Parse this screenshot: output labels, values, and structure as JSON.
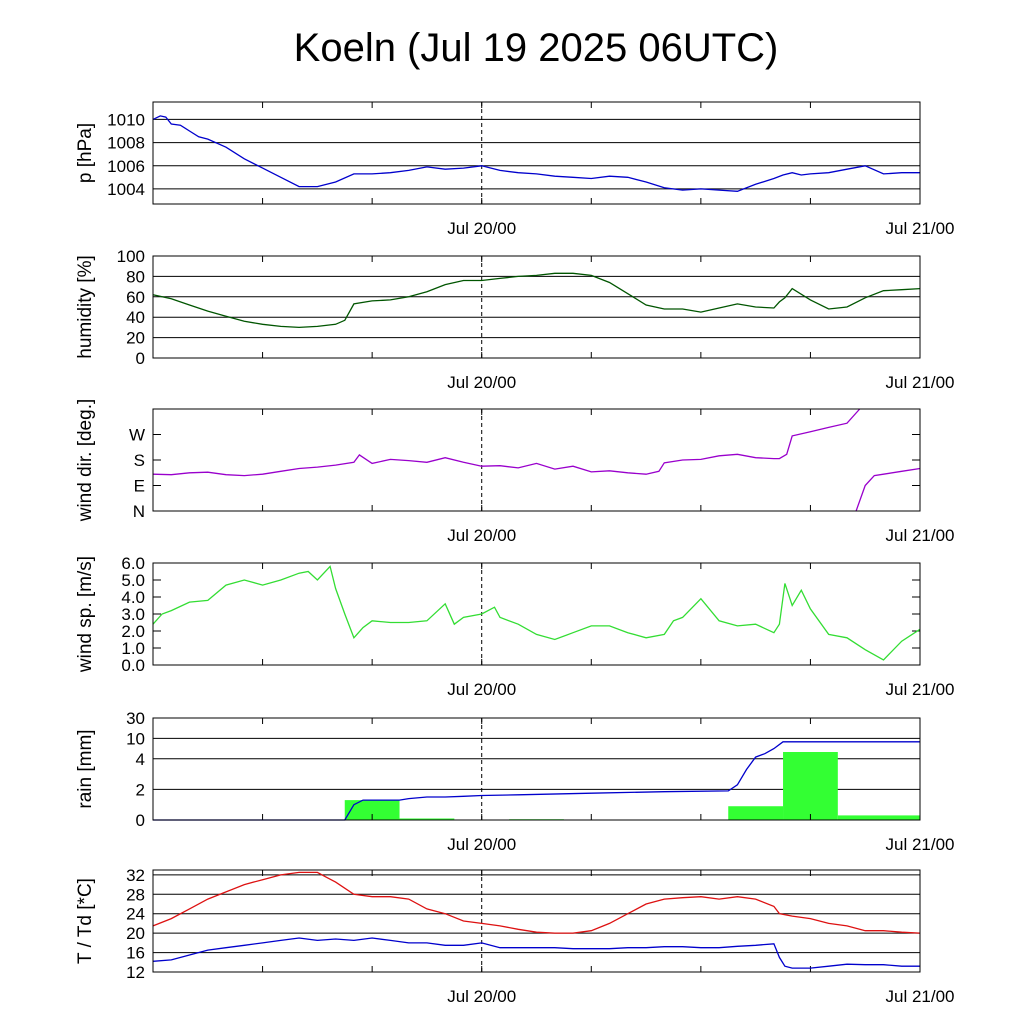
{
  "title": "Koeln (Jul 19 2025 06UTC)",
  "colors": {
    "pressure": "#0000cc",
    "humidity": "#005500",
    "wind_dir": "#9900cc",
    "wind_speed": "#33dd33",
    "rain_bars": "#33ff33",
    "rain_line": "#0000cc",
    "temperature": "#dd1111",
    "dewpoint": "#0000cc",
    "grid": "#000000"
  },
  "chart_data": [
    {
      "id": "pressure",
      "type": "line",
      "ylabel": "p [hPa]",
      "x_ticks": [
        "Jul 20/00",
        "Jul 21/00"
      ],
      "x_range_hours": [
        0,
        42
      ],
      "yticks": [
        1004,
        1006,
        1008,
        1010
      ],
      "ylim": [
        1002.7,
        1011.5
      ],
      "grid": true,
      "series": [
        {
          "name": "",
          "x": [
            0,
            0.4,
            0.7,
            1,
            1.5,
            2,
            2.5,
            3,
            4,
            5,
            6,
            7,
            8,
            9,
            10,
            11,
            12,
            13,
            14,
            15,
            16,
            17,
            18,
            19,
            20,
            21,
            22,
            23,
            24,
            25,
            26,
            27,
            28,
            29,
            30,
            31,
            32,
            33,
            34,
            34.5,
            35,
            35.5,
            36,
            37,
            38,
            39,
            40,
            41,
            42
          ],
          "y": [
            1010,
            1010.3,
            1010.2,
            1009.6,
            1009.5,
            1009,
            1008.5,
            1008.3,
            1007.6,
            1006.6,
            1005.8,
            1005,
            1004.2,
            1004.2,
            1004.6,
            1005.3,
            1005.3,
            1005.4,
            1005.6,
            1005.9,
            1005.7,
            1005.8,
            1006,
            1005.6,
            1005.4,
            1005.3,
            1005.1,
            1005,
            1004.9,
            1005.1,
            1005,
            1004.6,
            1004.1,
            1003.9,
            1004,
            1003.9,
            1003.8,
            1004.4,
            1004.9,
            1005.2,
            1005.4,
            1005.2,
            1005.3,
            1005.4,
            1005.7,
            1006,
            1005.3,
            1005.4,
            1005.4
          ]
        }
      ]
    },
    {
      "id": "humidity",
      "type": "line",
      "ylabel": "humidity [%]",
      "x_ticks": [
        "Jul 20/00",
        "Jul 21/00"
      ],
      "x_range_hours": [
        0,
        42
      ],
      "yticks": [
        0,
        20,
        40,
        60,
        80,
        100
      ],
      "ylim": [
        0,
        100
      ],
      "grid": true,
      "series": [
        {
          "name": "",
          "x": [
            0,
            1,
            2,
            3,
            4,
            5,
            6,
            7,
            8,
            9,
            10,
            10.5,
            11,
            12,
            13,
            14,
            15,
            16,
            17,
            18,
            19,
            20,
            21,
            22,
            23,
            24,
            25,
            26,
            27,
            28,
            29,
            30,
            31,
            32,
            33,
            34,
            34.3,
            34.6,
            35,
            36,
            37,
            38,
            39,
            40,
            41,
            42
          ],
          "y": [
            62,
            58,
            52,
            46,
            41,
            36,
            33,
            31,
            30,
            31,
            33,
            37,
            53,
            56,
            57,
            60,
            65,
            72,
            76,
            76,
            78,
            80,
            81,
            83,
            83,
            81,
            74,
            63,
            52,
            48,
            48,
            45,
            49,
            53,
            50,
            49,
            55,
            59,
            68,
            57,
            48,
            50,
            59,
            66,
            67,
            68
          ]
        }
      ]
    },
    {
      "id": "wind_dir",
      "type": "line",
      "ylabel": "wind dir. [deg.]",
      "x_ticks": [
        "Jul 20/00",
        "Jul 21/00"
      ],
      "x_range_hours": [
        0,
        42
      ],
      "ytick_labels": [
        "N",
        "E",
        "S",
        "W"
      ],
      "ytick_values": [
        0,
        90,
        180,
        270
      ],
      "ylim": [
        0,
        360
      ],
      "grid": false,
      "series": [
        {
          "name": "",
          "x": [
            0,
            1,
            2,
            3,
            4,
            5,
            6,
            7,
            8,
            9,
            10,
            11,
            11.3,
            12,
            13,
            14,
            15,
            16,
            17,
            18,
            19,
            20,
            21,
            22,
            23,
            24,
            25,
            26,
            27,
            27.7,
            28,
            29,
            30,
            31,
            32,
            33,
            34,
            34.3,
            34.7,
            35,
            36,
            37,
            38,
            38.7
          ],
          "y": [
            130,
            128,
            135,
            137,
            128,
            125,
            130,
            140,
            150,
            155,
            162,
            172,
            198,
            168,
            182,
            178,
            172,
            188,
            172,
            158,
            160,
            152,
            168,
            148,
            158,
            138,
            142,
            135,
            130,
            140,
            170,
            180,
            182,
            195,
            200,
            188,
            185,
            185,
            200,
            265,
            280,
            295,
            310,
            360
          ]
        },
        {
          "name": "",
          "x": [
            38.5,
            39,
            39.5,
            40,
            41,
            42
          ],
          "y": [
            0,
            90,
            125,
            130,
            140,
            150
          ]
        }
      ]
    },
    {
      "id": "wind_speed",
      "type": "line",
      "ylabel": "wind sp. [m/s]",
      "x_ticks": [
        "Jul 20/00",
        "Jul 21/00"
      ],
      "x_range_hours": [
        0,
        42
      ],
      "yticks": [
        0.0,
        1.0,
        2.0,
        3.0,
        4.0,
        5.0,
        6.0
      ],
      "ytick_labels": [
        "0.0",
        "1.0",
        "2.0",
        "3.0",
        "4.0",
        "5.0",
        "6.0"
      ],
      "ylim": [
        0,
        6.0
      ],
      "grid": false,
      "series": [
        {
          "name": "",
          "x": [
            0,
            0.5,
            1,
            2,
            3,
            4,
            5,
            6,
            7,
            8,
            8.5,
            9,
            9.7,
            10,
            10.5,
            11,
            11.5,
            12,
            13,
            14,
            15,
            16,
            16.5,
            17,
            18,
            18.7,
            19,
            20,
            21,
            22,
            23,
            24,
            25,
            26,
            27,
            28,
            28.5,
            29,
            30,
            31,
            32,
            33,
            34,
            34.3,
            34.6,
            35,
            35.5,
            36,
            37,
            38,
            39,
            40,
            41,
            42
          ],
          "y": [
            2.4,
            3.0,
            3.2,
            3.7,
            3.8,
            4.7,
            5.0,
            4.7,
            5.0,
            5.4,
            5.5,
            5.0,
            5.8,
            4.5,
            3.0,
            1.6,
            2.2,
            2.6,
            2.5,
            2.5,
            2.6,
            3.6,
            2.4,
            2.8,
            3.0,
            3.4,
            2.8,
            2.4,
            1.8,
            1.5,
            1.9,
            2.3,
            2.3,
            1.9,
            1.6,
            1.8,
            2.6,
            2.8,
            3.9,
            2.6,
            2.3,
            2.4,
            1.9,
            2.4,
            4.8,
            3.5,
            4.4,
            3.3,
            1.8,
            1.6,
            0.9,
            0.3,
            1.4,
            2.1
          ]
        }
      ]
    },
    {
      "id": "rain",
      "type": "bar",
      "ylabel": "rain [mm]",
      "x_ticks": [
        "Jul 20/00",
        "Jul 21/00"
      ],
      "x_range_hours": [
        0,
        42
      ],
      "yticks": [
        0,
        2,
        4,
        10,
        30
      ],
      "ylim": [
        0,
        30
      ],
      "grid": true,
      "bars": {
        "name": "",
        "x_start": [
          10.5,
          13.5,
          19.5,
          31.5,
          34.5,
          37.5
        ],
        "x_end": [
          13.5,
          16.5,
          22.5,
          34.5,
          37.5,
          42
        ],
        "values": [
          1.3,
          0.1,
          0.05,
          0.9,
          6.0,
          0.3
        ]
      },
      "series": [
        {
          "name": "",
          "x": [
            0,
            10.5,
            11,
            11.5,
            13.5,
            14,
            15,
            16,
            17,
            18,
            20,
            24,
            28,
            31.5,
            32,
            32.5,
            33,
            33.5,
            34,
            34.5,
            42
          ],
          "y": [
            0,
            0,
            1.0,
            1.3,
            1.3,
            1.4,
            1.5,
            1.5,
            1.55,
            1.6,
            1.65,
            1.75,
            1.85,
            1.9,
            2.3,
            3.3,
            4.5,
            5.5,
            7,
            9,
            9
          ]
        }
      ]
    },
    {
      "id": "temp",
      "type": "line",
      "ylabel": "T / Td [*C]",
      "x_ticks": [
        "Jul 20/00",
        "Jul 21/00"
      ],
      "x_range_hours": [
        0,
        42
      ],
      "yticks": [
        12,
        16,
        20,
        24,
        28,
        32
      ],
      "ylim": [
        12,
        33
      ],
      "grid": true,
      "series": [
        {
          "name": "",
          "x": [
            0,
            1,
            2,
            3,
            4,
            5,
            6,
            7,
            8,
            9,
            9.5,
            10,
            11,
            12,
            13,
            14,
            15,
            16,
            17,
            18,
            19,
            20,
            21,
            22,
            23,
            24,
            25,
            26,
            27,
            28,
            29,
            30,
            31,
            32,
            33,
            34,
            34.3,
            35,
            36,
            37,
            38,
            39,
            40,
            41,
            42
          ],
          "y": [
            21.5,
            23,
            25,
            27,
            28.5,
            30,
            31,
            32,
            32.5,
            32.5,
            31.5,
            30.5,
            28,
            27.5,
            27.5,
            27,
            25,
            24,
            22.5,
            22,
            21.5,
            20.8,
            20.2,
            20.0,
            20.0,
            20.5,
            22,
            24,
            26,
            27,
            27.3,
            27.5,
            27,
            27.5,
            27,
            25.5,
            24,
            23.5,
            23,
            22,
            21.5,
            20.5,
            20.5,
            20.2,
            20.0
          ]
        },
        {
          "name": "",
          "x": [
            0,
            1,
            2,
            3,
            4,
            5,
            6,
            7,
            8,
            9,
            10,
            11,
            12,
            13,
            14,
            15,
            16,
            17,
            18,
            19,
            20,
            21,
            22,
            23,
            24,
            25,
            26,
            27,
            28,
            29,
            30,
            31,
            32,
            33,
            34,
            34.3,
            34.6,
            35,
            36,
            37,
            38,
            39,
            40,
            41,
            42
          ],
          "y": [
            14.2,
            14.5,
            15.5,
            16.5,
            17,
            17.5,
            18,
            18.5,
            19,
            18.5,
            18.8,
            18.5,
            19,
            18.5,
            18,
            18,
            17.5,
            17.5,
            18,
            17,
            17,
            17,
            17,
            16.8,
            16.8,
            16.8,
            17,
            17,
            17.2,
            17.2,
            17,
            17,
            17.3,
            17.5,
            17.8,
            15,
            13.2,
            12.8,
            12.8,
            13.2,
            13.6,
            13.5,
            13.5,
            13.2,
            13.2
          ]
        }
      ]
    }
  ]
}
